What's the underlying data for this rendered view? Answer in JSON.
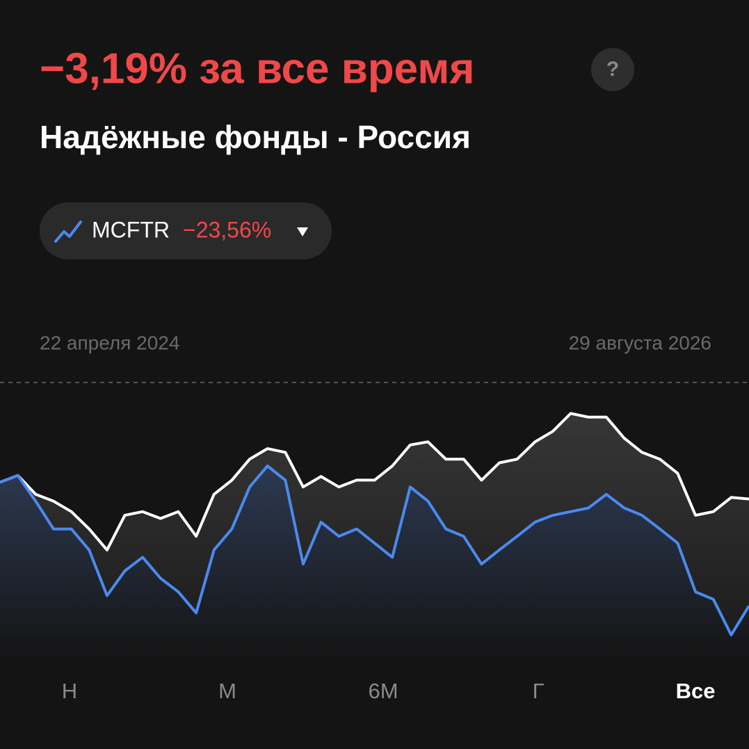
{
  "header": {
    "title": "−3,19% за все время",
    "help": "?"
  },
  "benchmark": {
    "change": "−23,56%"
  },
  "range": {
    "start": "22 апреля 2024",
    "end": "29 августа 2026"
  },
  "chart_data": {
    "type": "line",
    "ylim": [
      -34,
      19
    ],
    "series": [
      {
        "name": "Надёжные фонды - Россия",
        "color": "#ffffff",
        "values": [
          0,
          1.3,
          -2.3,
          -3.6,
          -5.6,
          -8.9,
          -12.9,
          -6.3,
          -5.6,
          -6.9,
          -5.6,
          -10.3,
          -2.3,
          0.4,
          4.4,
          6.4,
          5.7,
          -0.9,
          1.1,
          -0.9,
          0.4,
          0.4,
          3.1,
          7.1,
          7.7,
          4.4,
          4.4,
          0.4,
          3.7,
          4.4,
          7.7,
          9.7,
          13.1,
          12.4,
          12.4,
          8.4,
          5.7,
          4.4,
          1.7,
          -6.3,
          -5.6,
          -2.9,
          -3.19
        ]
      },
      {
        "name": "MCFTR",
        "color": "#4a8af0",
        "values": [
          0,
          1.3,
          -3.6,
          -8.9,
          -8.9,
          -12.9,
          -21.6,
          -16.9,
          -14.3,
          -18.3,
          -20.9,
          -24.9,
          -12.9,
          -8.9,
          -0.9,
          3.1,
          0.4,
          -15.6,
          -7.6,
          -10.3,
          -8.9,
          -11.6,
          -14.3,
          -0.9,
          -3.6,
          -8.9,
          -10.3,
          -15.6,
          -12.9,
          -10.3,
          -7.6,
          -6.3,
          -5.6,
          -4.9,
          -2.3,
          -4.9,
          -6.3,
          -8.9,
          -11.6,
          -20.9,
          -22.3,
          -29.1,
          -23.56
        ]
      }
    ]
  },
  "tabs": [
    "Н",
    "М",
    "6М",
    "Г",
    "Все"
  ],
  "selected_tab": 4
}
